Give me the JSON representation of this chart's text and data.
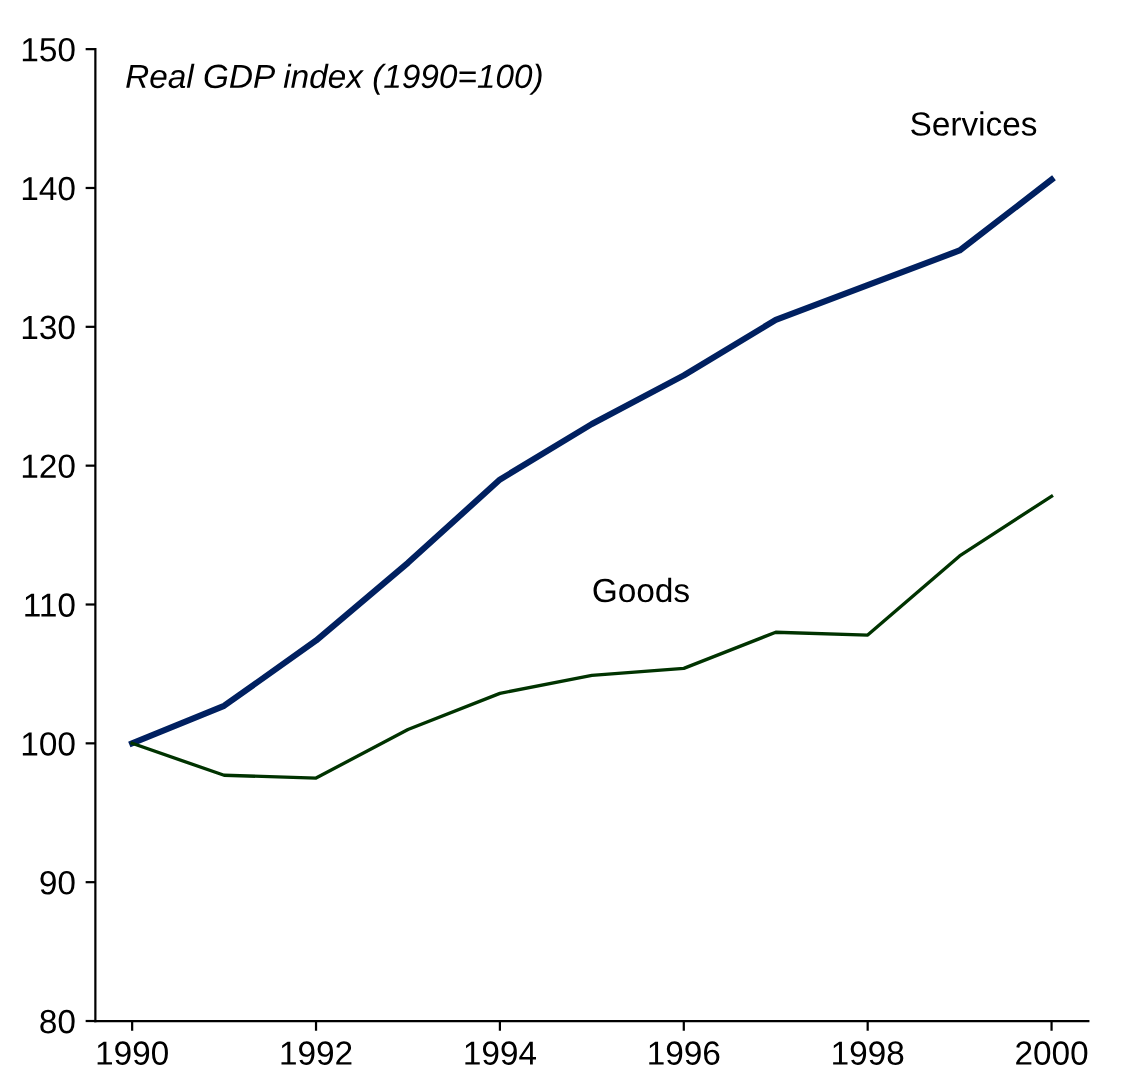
{
  "chart_data": {
    "type": "line",
    "title": "Real GDP index (1990=100)",
    "categories": [
      "1990",
      null,
      "1992",
      null,
      "1994",
      null,
      "1996",
      null,
      "1998",
      null,
      "2000"
    ],
    "series": [
      {
        "name": "Services",
        "color": "#002060",
        "values": [
          100,
          102.7,
          107.4,
          113,
          119,
          123,
          126.5,
          130.5,
          133,
          135.5,
          140.6
        ]
      },
      {
        "name": "Goods",
        "color": "#003300",
        "values": [
          100,
          97.7,
          97.5,
          101,
          103.6,
          104.9,
          105.4,
          108,
          107.8,
          113.5,
          117.8
        ]
      }
    ],
    "ylim": [
      80,
      150
    ],
    "yticks": [
      80,
      90,
      100,
      110,
      120,
      130,
      140,
      150
    ],
    "grid": false,
    "legend": false,
    "marker": "none",
    "line_style": "solid"
  }
}
